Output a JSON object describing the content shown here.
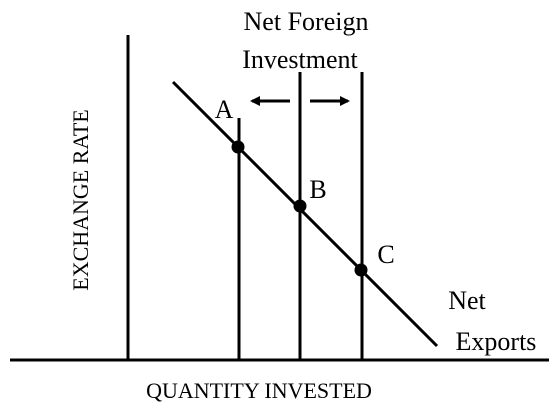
{
  "supply_label": [
    "Net Foreign",
    "Investment"
  ],
  "demand_label": [
    "Net",
    "Exports"
  ],
  "y_axis_label": "EXCHANGE RATE",
  "x_axis_label": "QUANTITY INVESTED",
  "points": [
    "A",
    "B",
    "C"
  ]
}
